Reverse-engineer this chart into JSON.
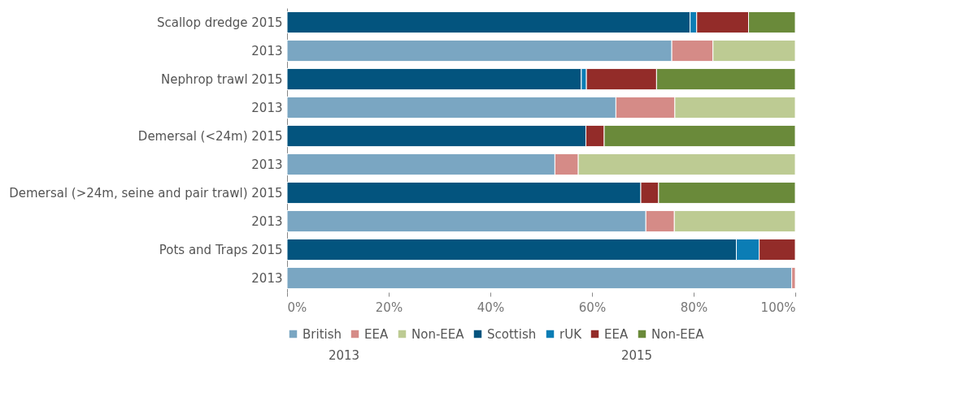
{
  "chart_data": {
    "type": "bar",
    "orientation": "horizontal",
    "stacked": true,
    "categories": [
      "Scallop dredge  2015",
      "2013",
      "Nephrop trawl  2015",
      "2013",
      "Demersal (<24m)  2015",
      "2013",
      "Demersal (>24m, seine and pair trawl)  2015",
      "2013",
      "Pots and Traps  2015",
      "2013"
    ],
    "series": [
      {
        "name": "British",
        "color": "#7aa6c2",
        "values": [
          null,
          75.7,
          null,
          64.7,
          null,
          52.7,
          null,
          70.6,
          null,
          99.3
        ]
      },
      {
        "name": "EEA",
        "color": "#d58b87",
        "values": [
          null,
          8.1,
          null,
          11.6,
          null,
          4.6,
          null,
          5.6,
          null,
          0.7
        ]
      },
      {
        "name": "Non-EEA",
        "color": "#bdcb93",
        "values": [
          null,
          16.2,
          null,
          23.7,
          null,
          42.7,
          null,
          23.8,
          null,
          null
        ]
      },
      {
        "name": "Scottish",
        "color": "#03547e",
        "values": [
          79.3,
          null,
          57.9,
          null,
          58.8,
          null,
          69.6,
          null,
          88.4,
          null
        ]
      },
      {
        "name": "rUK",
        "color": "#0b7db5",
        "values": [
          1.3,
          null,
          1.0,
          null,
          null,
          null,
          null,
          null,
          4.5,
          null
        ]
      },
      {
        "name": "EEA",
        "color": "#932c29",
        "values": [
          10.2,
          null,
          13.8,
          null,
          3.6,
          null,
          3.5,
          null,
          7.1,
          null
        ]
      },
      {
        "name": "Non-EEA",
        "color": "#6a8a3a",
        "values": [
          9.2,
          null,
          27.3,
          null,
          37.6,
          null,
          26.9,
          null,
          null,
          null
        ]
      }
    ],
    "xlim": [
      0,
      100
    ],
    "xticks": [
      {
        "value": 0,
        "label": "0%"
      },
      {
        "value": 20,
        "label": "20%"
      },
      {
        "value": 40,
        "label": "40%"
      },
      {
        "value": 60,
        "label": "60%"
      },
      {
        "value": 80,
        "label": "80%"
      },
      {
        "value": 100,
        "label": "100%"
      }
    ],
    "grid": false,
    "legend": "bottom",
    "annotations": [
      "2013",
      "2015"
    ]
  }
}
